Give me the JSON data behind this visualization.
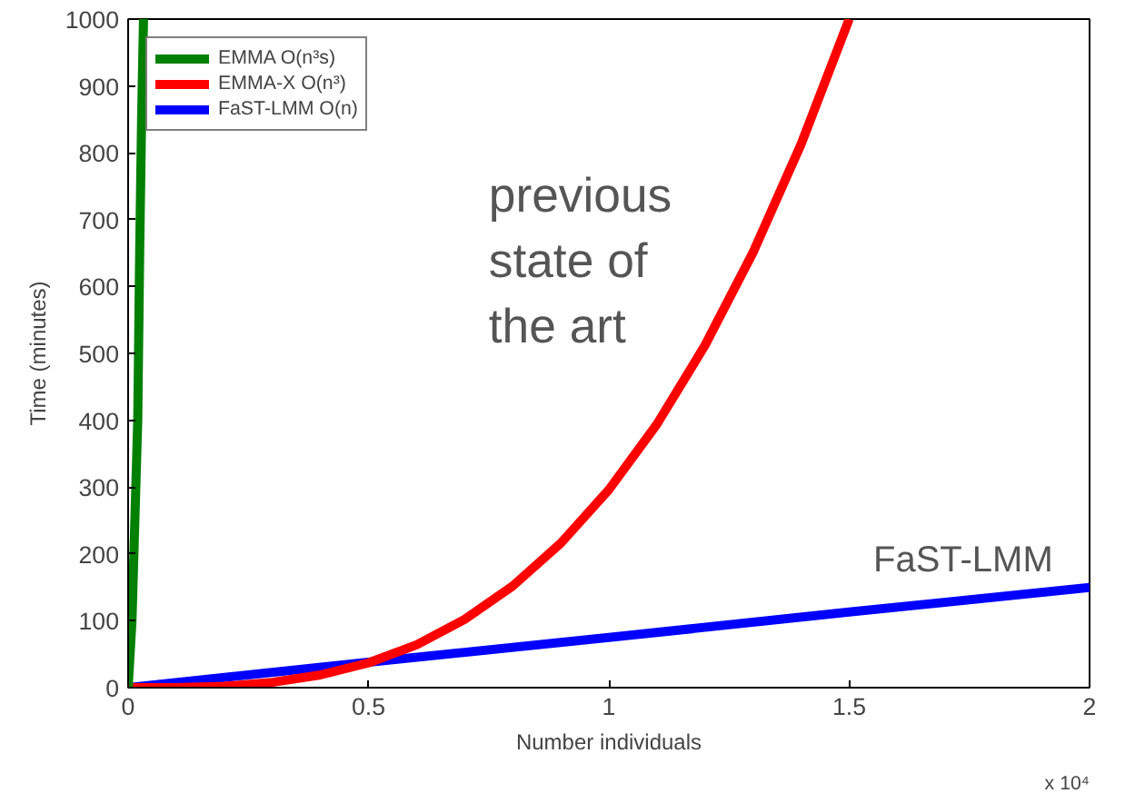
{
  "chart_data": {
    "type": "line",
    "xlabel": "Number individuals",
    "ylabel": "Time (minutes)",
    "xlim": [
      0,
      2
    ],
    "ylim": [
      0,
      1000
    ],
    "xticks": [
      0,
      0.5,
      1,
      1.5,
      2
    ],
    "yticks": [
      0,
      100,
      200,
      300,
      400,
      500,
      600,
      700,
      800,
      900,
      1000
    ],
    "grid": false,
    "legend": "top left",
    "line_style": "solid",
    "marker": "none",
    "series": [
      {
        "name": "FaST-LMM O(n)",
        "color": "#0000ff",
        "x": [
          0,
          0.5,
          1,
          1.5,
          2
        ],
        "values": [
          0,
          38,
          75,
          113,
          150
        ]
      },
      {
        "name": "EMMA-X O(n³)",
        "color": "#ff0000",
        "x": [
          0,
          0.1,
          0.2,
          0.3,
          0.4,
          0.5,
          0.6,
          0.7,
          0.8,
          0.9,
          1.0,
          1.1,
          1.2,
          1.3,
          1.4,
          1.5
        ],
        "values": [
          0,
          0,
          2,
          8,
          19,
          37,
          64,
          102,
          152,
          216,
          296,
          394,
          512,
          651,
          813,
          1000
        ]
      },
      {
        "name": "EMMA O(n³s)",
        "color": "#008000",
        "x": [
          0,
          0.008,
          0.012,
          0.016,
          0.02,
          0.024,
          0.028,
          0.032
        ],
        "values": [
          0,
          100,
          200,
          300,
          400,
          650,
          850,
          1000
        ]
      }
    ],
    "annotations": [
      "previous\nstate of\nthe art",
      "FaST-LMM",
      "x 10⁴"
    ]
  }
}
